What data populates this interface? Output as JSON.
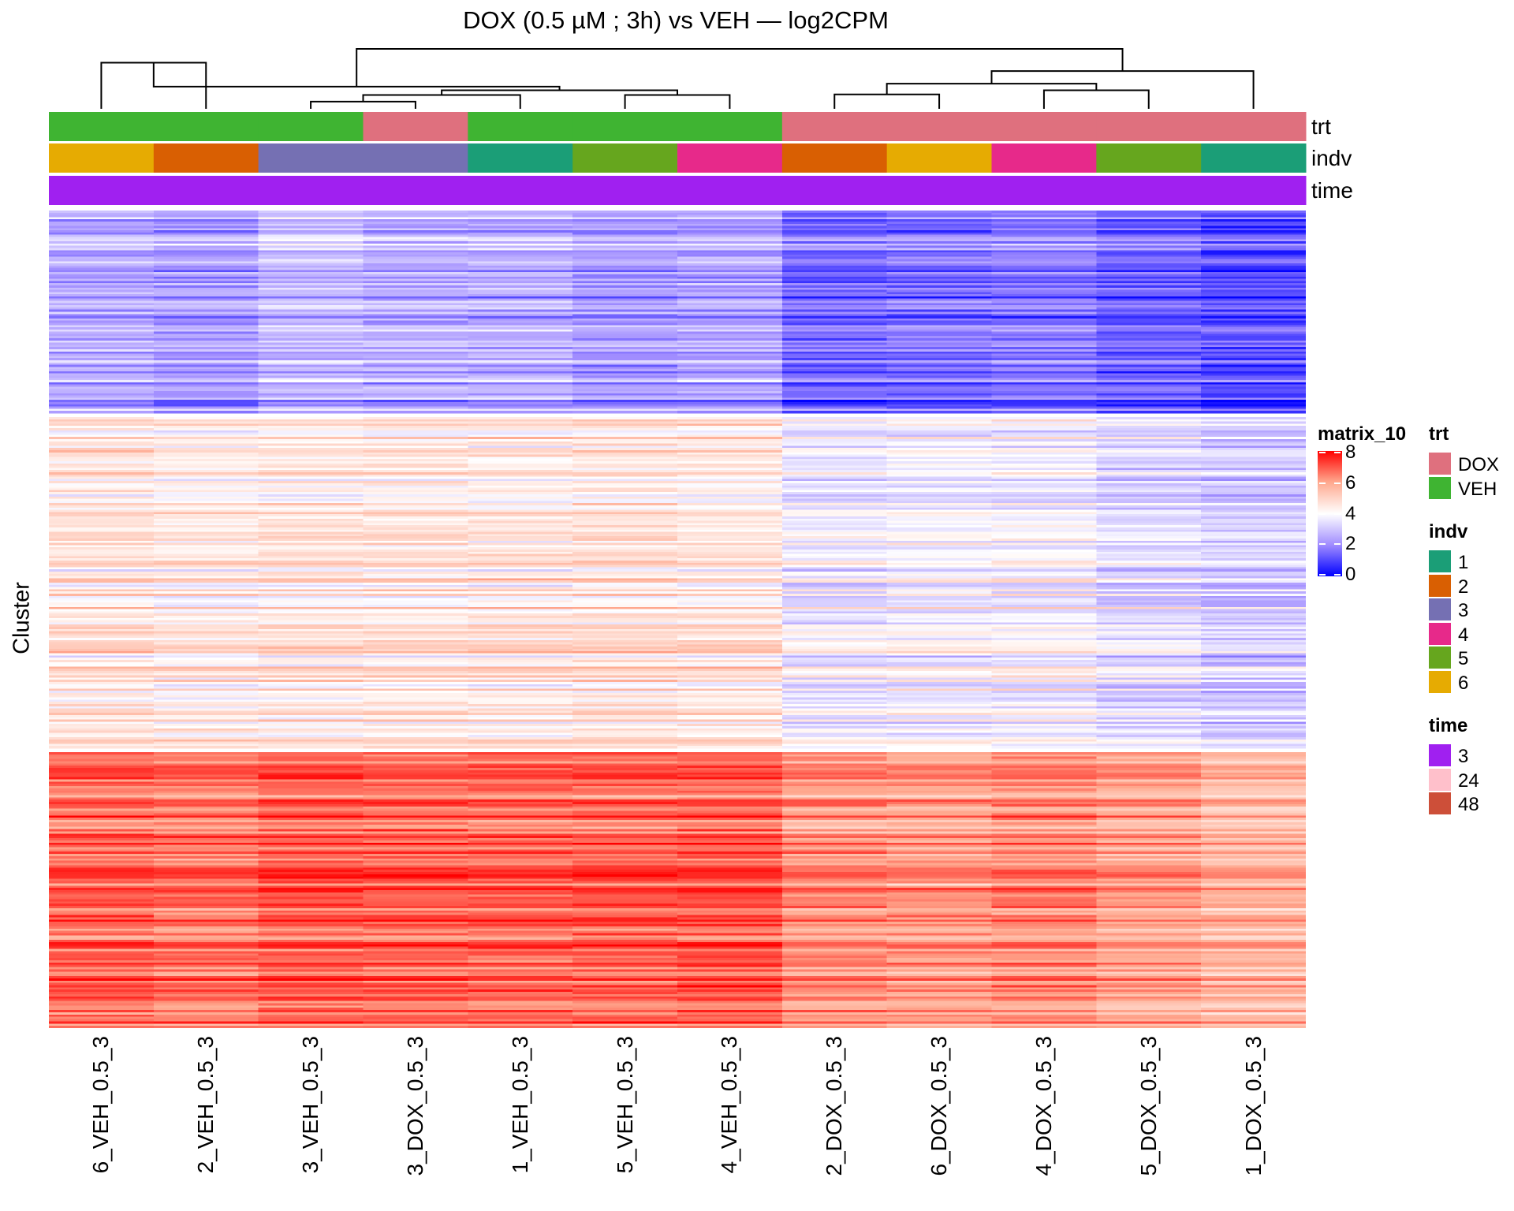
{
  "chart_data": {
    "type": "heatmap",
    "title": "DOX (0.5 µM ; 3h) vs VEH — log2CPM",
    "ylabel": "Cluster",
    "columns": [
      "6_VEH_0.5_3",
      "2_VEH_0.5_3",
      "3_VEH_0.5_3",
      "3_DOX_0.5_3",
      "1_VEH_0.5_3",
      "5_VEH_0.5_3",
      "4_VEH_0.5_3",
      "2_DOX_0.5_3",
      "6_DOX_0.5_3",
      "4_DOX_0.5_3",
      "5_DOX_0.5_3",
      "1_DOX_0.5_3"
    ],
    "annotations": {
      "trt": [
        "VEH",
        "VEH",
        "VEH",
        "DOX",
        "VEH",
        "VEH",
        "VEH",
        "DOX",
        "DOX",
        "DOX",
        "DOX",
        "DOX"
      ],
      "indv": [
        "6",
        "2",
        "3",
        "3",
        "1",
        "5",
        "4",
        "2",
        "6",
        "4",
        "5",
        "1"
      ],
      "time": [
        "3",
        "3",
        "3",
        "3",
        "3",
        "3",
        "3",
        "3",
        "3",
        "3",
        "3",
        "3"
      ]
    },
    "annotation_names": [
      "trt",
      "indv",
      "time"
    ],
    "clusters": [
      {
        "rows": 92,
        "means": [
          2.5,
          2.3,
          2.8,
          2.6,
          2.6,
          2.3,
          2.4,
          1.5,
          1.6,
          1.7,
          1.4,
          1.1
        ]
      },
      {
        "rows": 150,
        "means": [
          4.6,
          4.4,
          4.5,
          4.5,
          4.5,
          4.6,
          4.5,
          3.7,
          3.8,
          3.8,
          3.4,
          3.1
        ]
      },
      {
        "rows": 122,
        "means": [
          6.8,
          6.6,
          6.9,
          6.8,
          6.8,
          6.8,
          6.9,
          6.2,
          6.1,
          6.3,
          6.0,
          5.6
        ]
      }
    ],
    "dendrogram": {
      "merges": [
        {
          "a": "L0",
          "b": "L1",
          "height": 0.77
        },
        {
          "a": "L2",
          "b": "L3",
          "height": 0.12
        },
        {
          "a": "M1",
          "b": "L4",
          "height": 0.23
        },
        {
          "a": "L5",
          "b": "L6",
          "height": 0.23
        },
        {
          "a": "M2",
          "b": "M3",
          "height": 0.31
        },
        {
          "a": "M0",
          "b": "M4",
          "height": 0.37
        },
        {
          "a": "L7",
          "b": "L8",
          "height": 0.24
        },
        {
          "a": "L9",
          "b": "L10",
          "height": 0.31
        },
        {
          "a": "M6",
          "b": "M7",
          "height": 0.42
        },
        {
          "a": "M8",
          "b": "L11",
          "height": 0.63
        },
        {
          "a": "M5",
          "b": "M9",
          "height": 1.0
        }
      ]
    },
    "colorscale": {
      "title": "matrix_10",
      "ticks": [
        "0",
        "2",
        "4",
        "6",
        "8"
      ],
      "range": [
        0,
        8
      ],
      "colors": [
        "#0000FF",
        "#A08CFF",
        "#FFFFFF",
        "#FFA98F",
        "#FF0000"
      ]
    },
    "legends": {
      "trt": {
        "title": "trt",
        "items": [
          {
            "label": "DOX",
            "color": "#DF707E"
          },
          {
            "label": "VEH",
            "color": "#3FB432"
          }
        ]
      },
      "indv": {
        "title": "indv",
        "items": [
          {
            "label": "1",
            "color": "#1B9E77"
          },
          {
            "label": "2",
            "color": "#D95F02"
          },
          {
            "label": "3",
            "color": "#7570B3"
          },
          {
            "label": "4",
            "color": "#E7298A"
          },
          {
            "label": "5",
            "color": "#66A61E"
          },
          {
            "label": "6",
            "color": "#E6AB02"
          }
        ]
      },
      "time": {
        "title": "time",
        "items": [
          {
            "label": "3",
            "color": "#A020F0"
          },
          {
            "label": "24",
            "color": "#FFC0CB"
          },
          {
            "label": "48",
            "color": "#CD4F39"
          }
        ]
      }
    }
  }
}
